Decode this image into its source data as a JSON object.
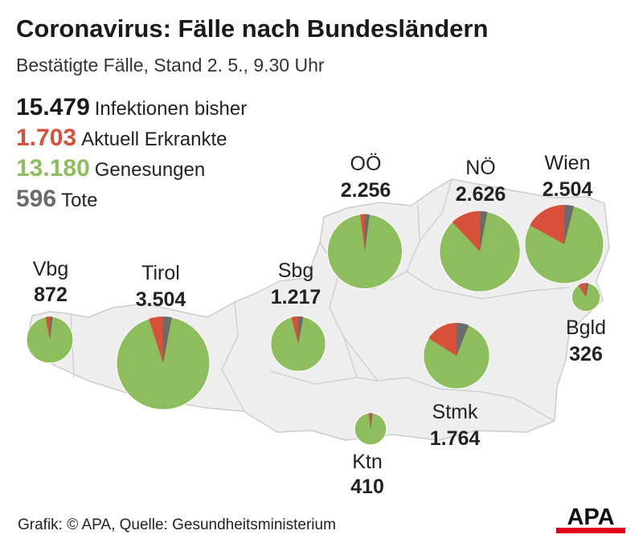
{
  "title": "Coronavirus: Fälle nach Bundesländern",
  "subtitle": "Bestätigte Fälle, Stand 2. 5., 9.30 Uhr",
  "totals": {
    "infections": {
      "value": "15.479",
      "label": "Infektionen bisher"
    },
    "active": {
      "value": "1.703",
      "label": "Aktuell Erkrankte"
    },
    "recovered": {
      "value": "13.180",
      "label": "Genesungen"
    },
    "deaths": {
      "value": "596",
      "label": "Tote"
    }
  },
  "colors": {
    "active": "#d9503a",
    "recovered": "#8dbd5c",
    "deaths": "#6b6b6b",
    "map_fill": "#eeeeee",
    "map_border": "#cccccc",
    "logo_red": "#e3001b"
  },
  "regions": [
    {
      "id": "vbg",
      "name": "Vbg",
      "cases": 872,
      "cases_label": "872"
    },
    {
      "id": "tirol",
      "name": "Tirol",
      "cases": 3504,
      "cases_label": "3.504"
    },
    {
      "id": "sbg",
      "name": "Sbg",
      "cases": 1217,
      "cases_label": "1.217"
    },
    {
      "id": "ooe",
      "name": "OÖ",
      "cases": 2256,
      "cases_label": "2.256"
    },
    {
      "id": "noe",
      "name": "NÖ",
      "cases": 2626,
      "cases_label": "2.626"
    },
    {
      "id": "wien",
      "name": "Wien",
      "cases": 2504,
      "cases_label": "2.504"
    },
    {
      "id": "bgld",
      "name": "Bgld",
      "cases": 326,
      "cases_label": "326"
    },
    {
      "id": "stmk",
      "name": "Stmk",
      "cases": 1764,
      "cases_label": "1.764"
    },
    {
      "id": "ktn",
      "name": "Ktn",
      "cases": 410,
      "cases_label": "410"
    }
  ],
  "pie_shares": {
    "vbg": {
      "deaths": 0.02,
      "active": 0.03
    },
    "tirol": {
      "deaths": 0.03,
      "active": 0.05
    },
    "sbg": {
      "deaths": 0.03,
      "active": 0.04
    },
    "ooe": {
      "deaths": 0.02,
      "active": 0.02
    },
    "noe": {
      "deaths": 0.03,
      "active": 0.12
    },
    "wien": {
      "deaths": 0.04,
      "active": 0.17
    },
    "bgld": {
      "deaths": 0.03,
      "active": 0.09
    },
    "stmk": {
      "deaths": 0.06,
      "active": 0.16
    },
    "ktn": {
      "deaths": 0.02,
      "active": 0.02
    }
  },
  "source": "Grafik: © APA, Quelle: Gesundheitsministerium",
  "logo_text": "APA"
}
